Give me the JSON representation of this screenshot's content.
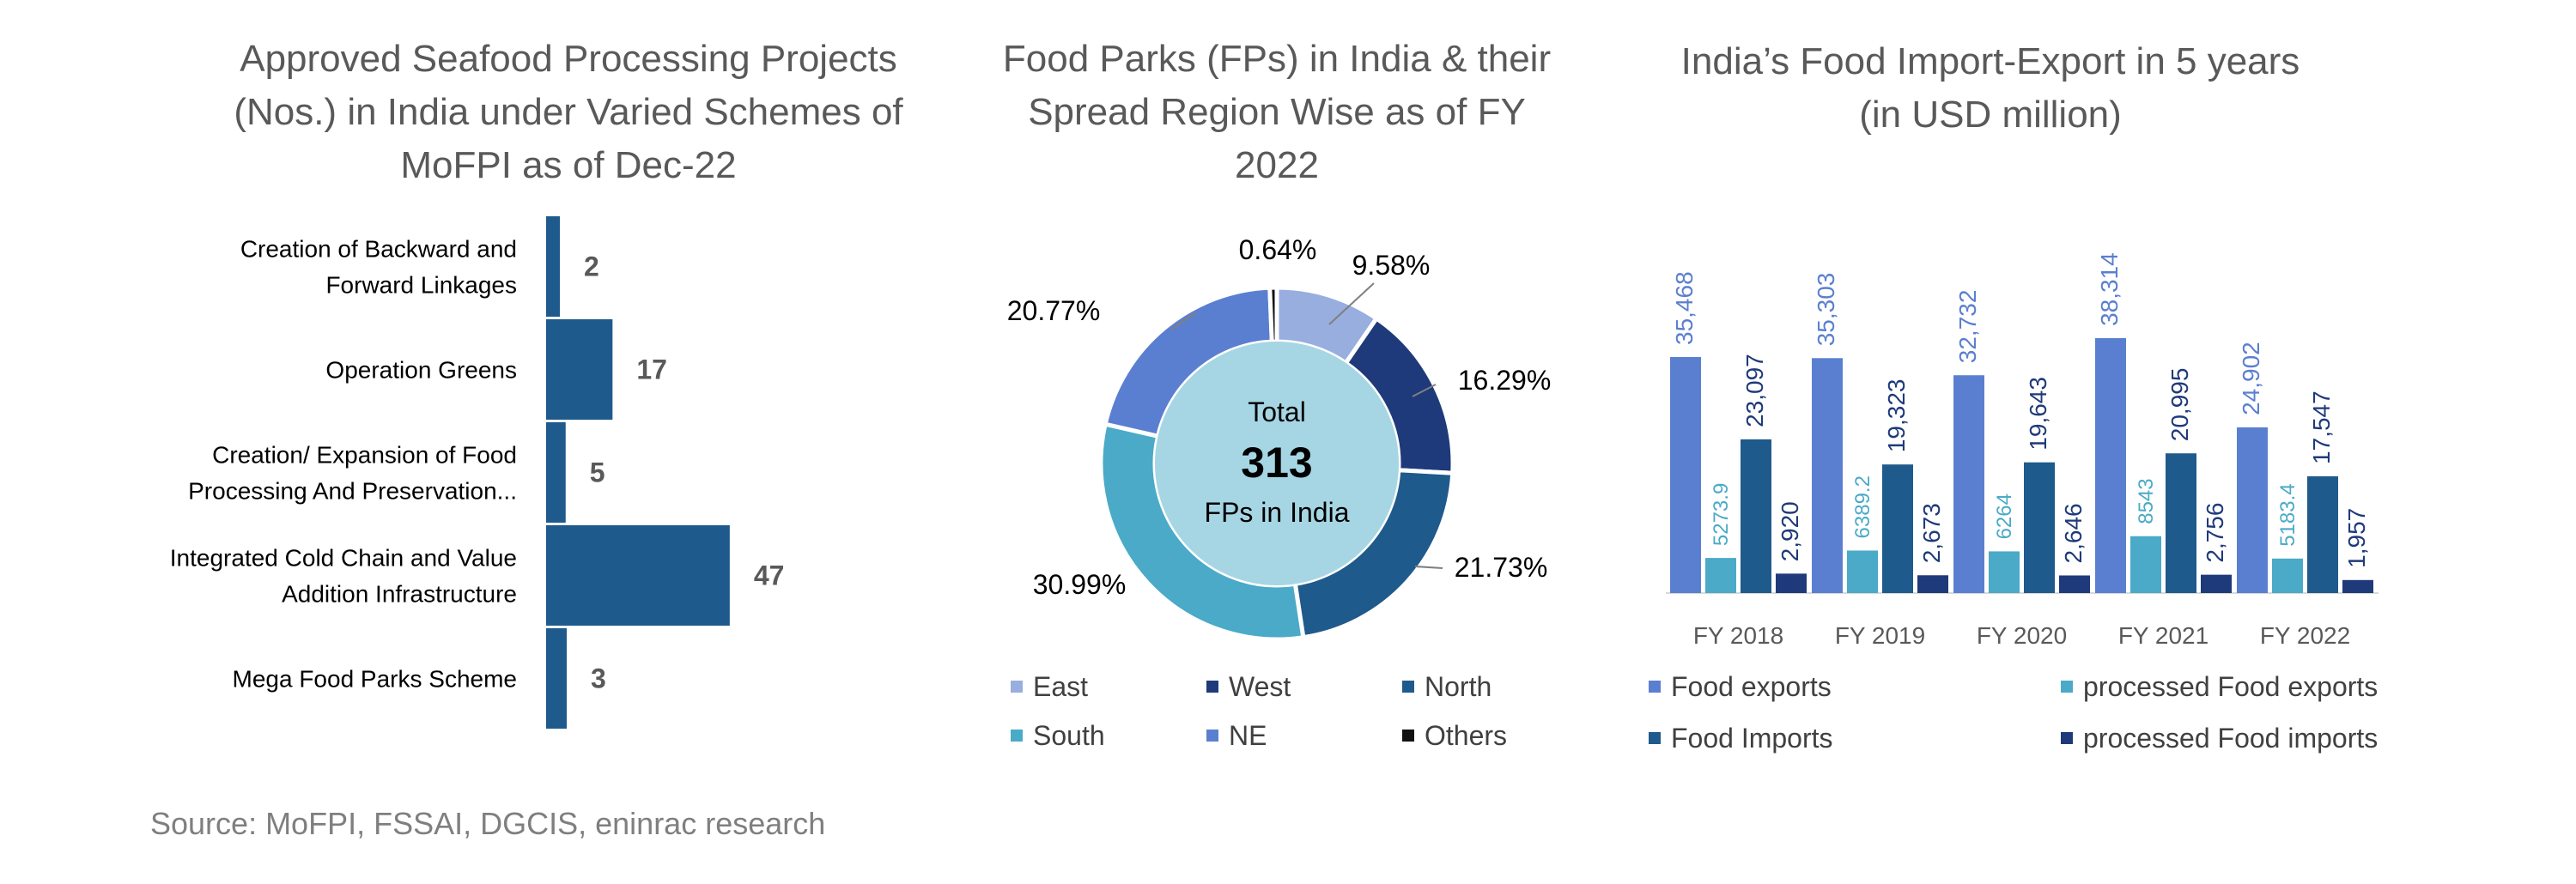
{
  "source": "Source: MoFPI, FSSAI, DGCIS, eninrac research",
  "colors": {
    "bar_chart": "#1f5a8c",
    "east": "#98aedf",
    "west": "#1f3a7a",
    "north": "#1f5a8c",
    "south": "#4aaac8",
    "ne": "#5b7fd0",
    "others": "#111111",
    "center": "#a6d6e4",
    "food_exports": "#5b7fd0",
    "processed_food_exports": "#4aaac8",
    "food_imports": "#1f5a8c",
    "processed_food_imports": "#1f3a7a"
  },
  "chart_data": [
    {
      "type": "bar",
      "orientation": "horizontal",
      "title_lines": [
        "Approved Seafood Processing Projects",
        "(Nos.) in India under Varied Schemes of",
        "MoFPI as of Dec-22"
      ],
      "categories": [
        [
          "Creation of Backward and",
          "Forward Linkages"
        ],
        [
          "Operation Greens"
        ],
        [
          "Creation/ Expansion of Food",
          "Processing And Preservation..."
        ],
        [
          "Integrated Cold Chain and Value",
          "Addition Infrastructure"
        ],
        [
          "Mega Food Parks Scheme"
        ]
      ],
      "values": [
        2,
        17,
        5,
        47,
        3
      ]
    },
    {
      "type": "pie",
      "variant": "donut",
      "title_lines": [
        "Food Parks (FPs) in India & their",
        "Spread Region Wise as of FY",
        "2022"
      ],
      "center_text": {
        "top": "Total",
        "number": "313",
        "bottom": "FPs in India"
      },
      "slices": [
        {
          "name": "East",
          "value": 9.58,
          "label": "9.58%"
        },
        {
          "name": "West",
          "value": 16.29,
          "label": "16.29%"
        },
        {
          "name": "North",
          "value": 21.73,
          "label": "21.73%"
        },
        {
          "name": "South",
          "value": 30.99,
          "label": "30.99%"
        },
        {
          "name": "NE",
          "value": 20.77,
          "label": "20.77%"
        },
        {
          "name": "Others",
          "value": 0.64,
          "label": "0.64%"
        }
      ]
    },
    {
      "type": "bar",
      "title_lines": [
        "India’s Food Import-Export in 5 years",
        "(in USD million)"
      ],
      "categories": [
        "FY 2018",
        "FY 2019",
        "FY 2020",
        "FY 2021",
        "FY 2022"
      ],
      "series": [
        {
          "name": "Food exports",
          "values": [
            35468,
            35303,
            32732,
            38314,
            24902
          ],
          "labels": [
            "35,468",
            "35,303",
            "32,732",
            "38,314",
            "24,902"
          ]
        },
        {
          "name": "processed Food exports",
          "values": [
            5273.9,
            6389.2,
            6264,
            8543,
            5183.4
          ],
          "labels": [
            "5273.9",
            "6389.2",
            "6264",
            "8543",
            "5183.4"
          ]
        },
        {
          "name": "Food Imports",
          "values": [
            23097,
            19323,
            19643,
            20995,
            17547
          ],
          "labels": [
            "23,097",
            "19,323",
            "19,643",
            "20,995",
            "17,547"
          ]
        },
        {
          "name": "processed Food imports",
          "values": [
            2920,
            2673,
            2646,
            2756,
            1957
          ],
          "labels": [
            "2,920",
            "2,673",
            "2,646",
            "2,756",
            "1,957"
          ]
        }
      ],
      "legend_order": [
        [
          "Food exports",
          "processed Food exports"
        ],
        [
          "Food Imports",
          "processed Food imports"
        ]
      ]
    }
  ]
}
